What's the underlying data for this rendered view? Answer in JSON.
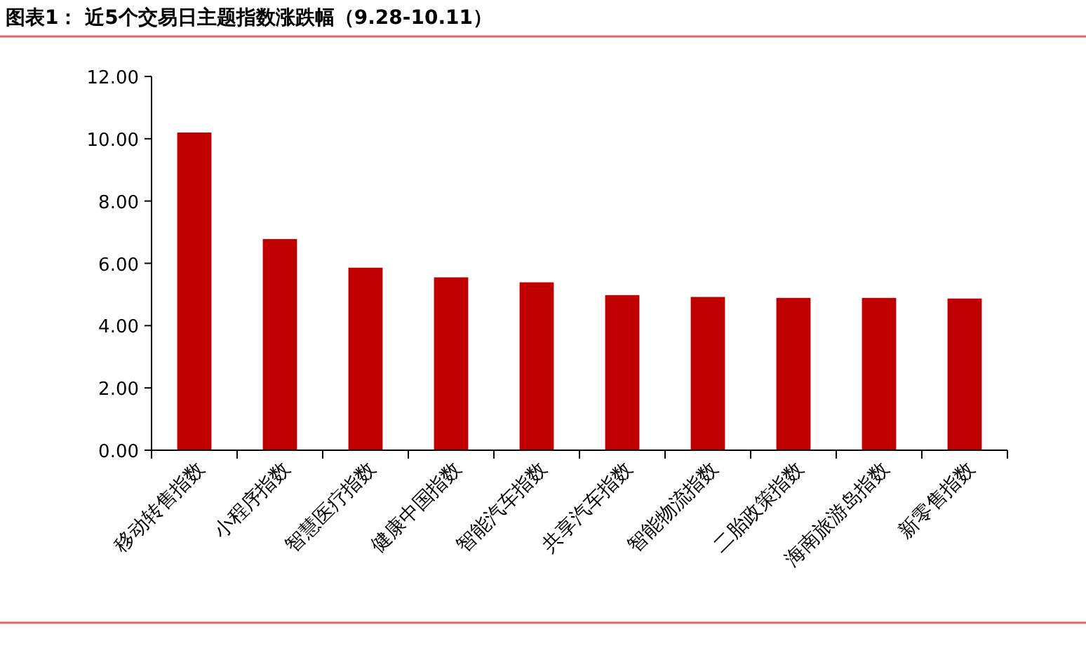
{
  "chart_data": {
    "type": "bar",
    "title": "图表1：  近5个交易日主题指数涨跌幅（9.28-10.11）",
    "categories": [
      "移动转售指数",
      "小程序指数",
      "智慧医疗指数",
      "健康中国指数",
      "智能汽车指数",
      "共享汽车指数",
      "智能物流指数",
      "二胎政策指数",
      "海南旅游岛指数",
      "新零售指数"
    ],
    "values": [
      10.2,
      6.78,
      5.86,
      5.55,
      5.39,
      4.98,
      4.92,
      4.89,
      4.89,
      4.87
    ],
    "color": "#c00000",
    "ylim": [
      0,
      12
    ],
    "yticks": [
      {
        "value": 0,
        "label": "0.00"
      },
      {
        "value": 2,
        "label": "2.00"
      },
      {
        "value": 4,
        "label": "4.00"
      },
      {
        "value": 6,
        "label": "6.00"
      },
      {
        "value": 8,
        "label": "8.00"
      },
      {
        "value": 10,
        "label": "10.00"
      },
      {
        "value": 12,
        "label": "12.00"
      }
    ],
    "grid": false
  }
}
